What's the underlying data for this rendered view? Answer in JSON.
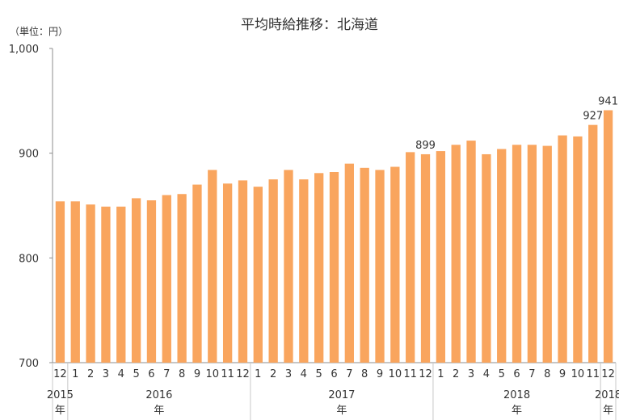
{
  "chart_data": {
    "type": "bar",
    "title": "平均時給推移：北海道",
    "unit_label": "（単位：円）",
    "ylim": [
      700,
      1000
    ],
    "yticks": [
      "700",
      "800",
      "900",
      "1,000"
    ],
    "ytick_values": [
      700,
      800,
      900,
      1000
    ],
    "bar_color": "#F9A55E",
    "categories": [
      "12",
      "1",
      "2",
      "3",
      "4",
      "5",
      "6",
      "7",
      "8",
      "9",
      "10",
      "11",
      "12",
      "1",
      "2",
      "3",
      "4",
      "5",
      "6",
      "7",
      "8",
      "9",
      "10",
      "11",
      "12",
      "1",
      "2",
      "3",
      "4",
      "5",
      "6",
      "7",
      "8",
      "9",
      "10",
      "11",
      "12"
    ],
    "values": [
      854,
      854,
      851,
      849,
      849,
      857,
      855,
      860,
      861,
      870,
      884,
      871,
      874,
      868,
      875,
      884,
      875,
      881,
      882,
      890,
      886,
      884,
      887,
      901,
      899,
      902,
      908,
      912,
      899,
      904,
      908,
      908,
      907,
      917,
      916,
      927,
      941
    ],
    "data_labels": [
      {
        "index": 24,
        "text": "899"
      },
      {
        "index": 35,
        "text": "927"
      },
      {
        "index": 36,
        "text": "941"
      }
    ],
    "year_groups": [
      {
        "year": "2015",
        "suffix": "年",
        "start": 0,
        "end": 0
      },
      {
        "year": "2016",
        "suffix": "年",
        "start": 1,
        "end": 12
      },
      {
        "year": "2017",
        "suffix": "年",
        "start": 13,
        "end": 24
      },
      {
        "year": "2018",
        "suffix": "年",
        "start": 25,
        "end": 35
      },
      {
        "year": "2018",
        "suffix": "年",
        "start": 36,
        "end": 36
      }
    ],
    "grid": false
  }
}
